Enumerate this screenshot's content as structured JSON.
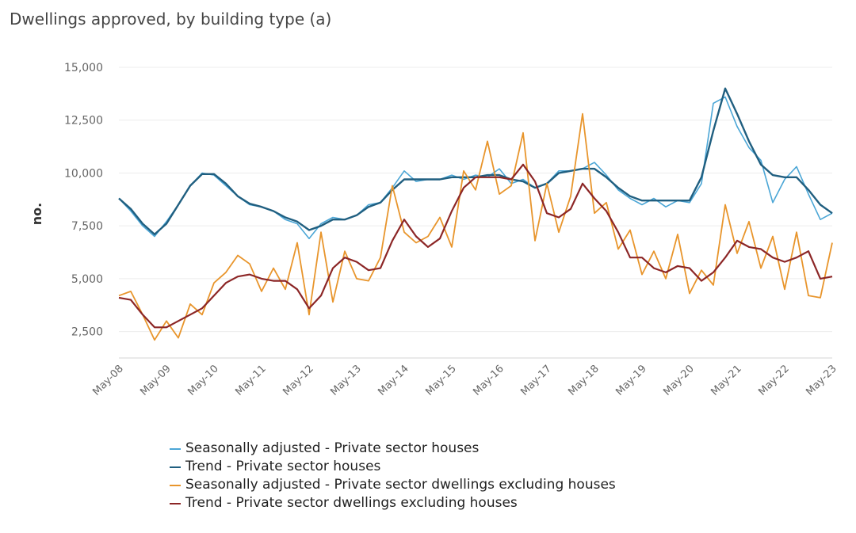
{
  "chart_data": {
    "type": "line",
    "title": "Dwellings approved, by building type (a)",
    "xlabel": "",
    "ylabel": "no.",
    "ylim": [
      1250,
      15000
    ],
    "yticks": [
      2500,
      5000,
      7500,
      10000,
      12500,
      15000
    ],
    "ytick_labels": [
      "2,500",
      "5,000",
      "7,500",
      "10,000",
      "12,500",
      "15,000"
    ],
    "xticks": [
      "May-08",
      "May-09",
      "May-10",
      "May-11",
      "May-12",
      "May-13",
      "May-14",
      "May-15",
      "May-16",
      "May-17",
      "May-18",
      "May-19",
      "May-20",
      "May-21",
      "May-22",
      "May-23"
    ],
    "x_start": "May-08",
    "x_end": "May-23",
    "x_step": "quarterly (approx.)",
    "grid": true,
    "legend_position": "bottom",
    "series": [
      {
        "name": "Seasonally adjusted - Private sector houses",
        "color": "#4ba6d6",
        "values": [
          8800,
          8200,
          7500,
          7000,
          7700,
          8500,
          9400,
          10000,
          9900,
          9400,
          8900,
          8500,
          8400,
          8200,
          7800,
          7600,
          6900,
          7600,
          7900,
          7800,
          8000,
          8500,
          8600,
          9300,
          10100,
          9600,
          9700,
          9700,
          9900,
          9700,
          9900,
          9800,
          10200,
          9500,
          9700,
          9300,
          9500,
          10100,
          10100,
          10200,
          10500,
          9900,
          9200,
          8800,
          8500,
          8800,
          8400,
          8700,
          8600,
          9500,
          13300,
          13600,
          12200,
          11200,
          10600,
          8600,
          9700,
          10300,
          9000,
          7800,
          8100
        ]
      },
      {
        "name": "Trend - Private sector houses",
        "color": "#205f80",
        "values": [
          8800,
          8300,
          7600,
          7100,
          7600,
          8500,
          9400,
          9950,
          9950,
          9500,
          8900,
          8550,
          8400,
          8200,
          7900,
          7700,
          7300,
          7500,
          7800,
          7800,
          8000,
          8400,
          8600,
          9200,
          9700,
          9700,
          9700,
          9700,
          9800,
          9800,
          9800,
          9900,
          9900,
          9700,
          9600,
          9300,
          9500,
          10000,
          10100,
          10200,
          10200,
          9800,
          9300,
          8900,
          8700,
          8700,
          8700,
          8700,
          8700,
          9800,
          12000,
          14000,
          12800,
          11500,
          10400,
          9900,
          9800,
          9800,
          9200,
          8500,
          8100
        ]
      },
      {
        "name": "Seasonally adjusted - Private sector dwellings excluding houses",
        "color": "#e8952c",
        "values": [
          4200,
          4400,
          3300,
          2100,
          3000,
          2200,
          3800,
          3300,
          4800,
          5300,
          6100,
          5700,
          4400,
          5500,
          4500,
          6700,
          3300,
          7200,
          3900,
          6300,
          5000,
          4900,
          6000,
          9400,
          7200,
          6700,
          7000,
          7900,
          6500,
          10100,
          9200,
          11500,
          9000,
          9400,
          11900,
          6800,
          9500,
          7200,
          8900,
          12800,
          8100,
          8600,
          6400,
          7300,
          5200,
          6300,
          5000,
          7100,
          4300,
          5400,
          4700,
          8500,
          6200,
          7700,
          5500,
          7000,
          4500,
          7200,
          4200,
          4100,
          6700
        ]
      },
      {
        "name": "Trend - Private sector dwellings excluding houses",
        "color": "#8c2626",
        "values": [
          4100,
          4000,
          3300,
          2700,
          2700,
          3000,
          3300,
          3600,
          4200,
          4800,
          5100,
          5200,
          5000,
          4900,
          4900,
          4500,
          3600,
          4200,
          5500,
          6000,
          5800,
          5400,
          5500,
          6800,
          7800,
          7000,
          6500,
          6900,
          8200,
          9300,
          9800,
          9800,
          9800,
          9700,
          10400,
          9600,
          8100,
          7900,
          8300,
          9500,
          8800,
          8200,
          7200,
          6000,
          6000,
          5500,
          5300,
          5600,
          5500,
          4900,
          5300,
          6000,
          6800,
          6500,
          6400,
          6000,
          5800,
          6000,
          6300,
          5000,
          5100
        ]
      }
    ]
  }
}
